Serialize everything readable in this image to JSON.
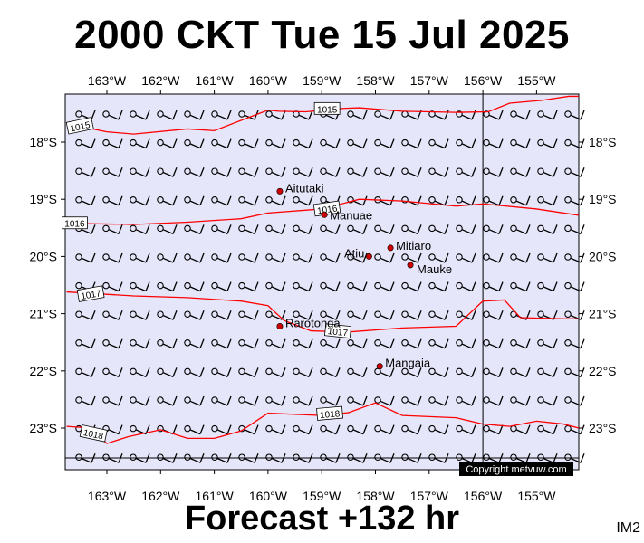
{
  "title": "2000 CKT Tue 15 Jul 2025",
  "footer": "Forecast +132 hr",
  "map_code": "IM2",
  "copyright": "Copyright metvuw.com",
  "colors": {
    "background": "#e6e6fa",
    "isobar": "#ff0000",
    "island": "#cc0000",
    "wind": "#000000"
  },
  "longitude_labels": [
    "163°W",
    "162°W",
    "161°W",
    "160°W",
    "159°W",
    "158°W",
    "157°W",
    "156°W",
    "155°W"
  ],
  "latitude_labels": [
    "18°S",
    "19°S",
    "20°S",
    "21°S",
    "22°S",
    "23°S"
  ],
  "islands": [
    {
      "name": "Aitutaki",
      "lon": -159.78,
      "lat": -18.86
    },
    {
      "name": "Manuae",
      "lon": -158.95,
      "lat": -19.27
    },
    {
      "name": "Mitiaro",
      "lon": -157.72,
      "lat": -19.85
    },
    {
      "name": "Atiu",
      "lon": -158.12,
      "lat": -20.0
    },
    {
      "name": "Mauke",
      "lon": -157.35,
      "lat": -20.15
    },
    {
      "name": "Rarotonga",
      "lon": -159.78,
      "lat": -21.22
    },
    {
      "name": "Mangaia",
      "lon": -157.92,
      "lat": -21.92
    }
  ],
  "isobars": [
    {
      "label": "1015",
      "points": [
        [
          -163.75,
          -17.68
        ],
        [
          -163.0,
          -17.82
        ],
        [
          -162.5,
          -17.86
        ],
        [
          -161.5,
          -17.77
        ],
        [
          -161.0,
          -17.8
        ],
        [
          -160.0,
          -17.44
        ],
        [
          -159.8,
          -17.46
        ],
        [
          -159.3,
          -17.47
        ],
        [
          -158.6,
          -17.41
        ],
        [
          -158.3,
          -17.4
        ],
        [
          -157.5,
          -17.46
        ],
        [
          -156.5,
          -17.48
        ],
        [
          -155.9,
          -17.47
        ],
        [
          -155.5,
          -17.32
        ],
        [
          -154.9,
          -17.27
        ],
        [
          -154.4,
          -17.2
        ],
        [
          -154.05,
          -17.2
        ]
      ]
    },
    {
      "label": "1016",
      "points": [
        [
          -163.75,
          -19.42
        ],
        [
          -162.5,
          -19.44
        ],
        [
          -161.5,
          -19.4
        ],
        [
          -160.5,
          -19.34
        ],
        [
          -160.0,
          -19.24
        ],
        [
          -159.0,
          -19.17
        ],
        [
          -158.3,
          -19.0
        ],
        [
          -157.5,
          -19.03
        ],
        [
          -156.5,
          -19.12
        ],
        [
          -156.0,
          -19.08
        ],
        [
          -155.0,
          -19.17
        ],
        [
          -154.05,
          -19.28
        ]
      ]
    },
    {
      "label": "1017",
      "points": [
        [
          -163.75,
          -20.62
        ],
        [
          -162.5,
          -20.69
        ],
        [
          -161.5,
          -20.72
        ],
        [
          -160.5,
          -20.78
        ],
        [
          -160.0,
          -20.86
        ],
        [
          -159.7,
          -21.12
        ],
        [
          -159.2,
          -21.3
        ],
        [
          -158.5,
          -21.32
        ],
        [
          -157.5,
          -21.25
        ],
        [
          -156.5,
          -21.22
        ],
        [
          -156.0,
          -20.78
        ],
        [
          -155.6,
          -20.76
        ],
        [
          -155.3,
          -21.07
        ],
        [
          -154.5,
          -21.09
        ],
        [
          -154.05,
          -21.09
        ]
      ]
    },
    {
      "label": "1018",
      "points": [
        [
          -163.75,
          -22.97
        ],
        [
          -163.3,
          -23.0
        ],
        [
          -163.0,
          -23.27
        ],
        [
          -162.6,
          -23.15
        ],
        [
          -162.0,
          -23.03
        ],
        [
          -161.5,
          -23.18
        ],
        [
          -161.0,
          -23.18
        ],
        [
          -160.5,
          -23.05
        ],
        [
          -160.0,
          -22.74
        ],
        [
          -159.0,
          -22.78
        ],
        [
          -158.5,
          -22.73
        ],
        [
          -158.0,
          -22.56
        ],
        [
          -157.5,
          -22.78
        ],
        [
          -156.5,
          -22.82
        ],
        [
          -156.0,
          -22.93
        ],
        [
          -155.5,
          -22.97
        ],
        [
          -155.0,
          -22.88
        ],
        [
          -154.5,
          -22.93
        ],
        [
          -154.05,
          -23.0
        ]
      ]
    }
  ]
}
